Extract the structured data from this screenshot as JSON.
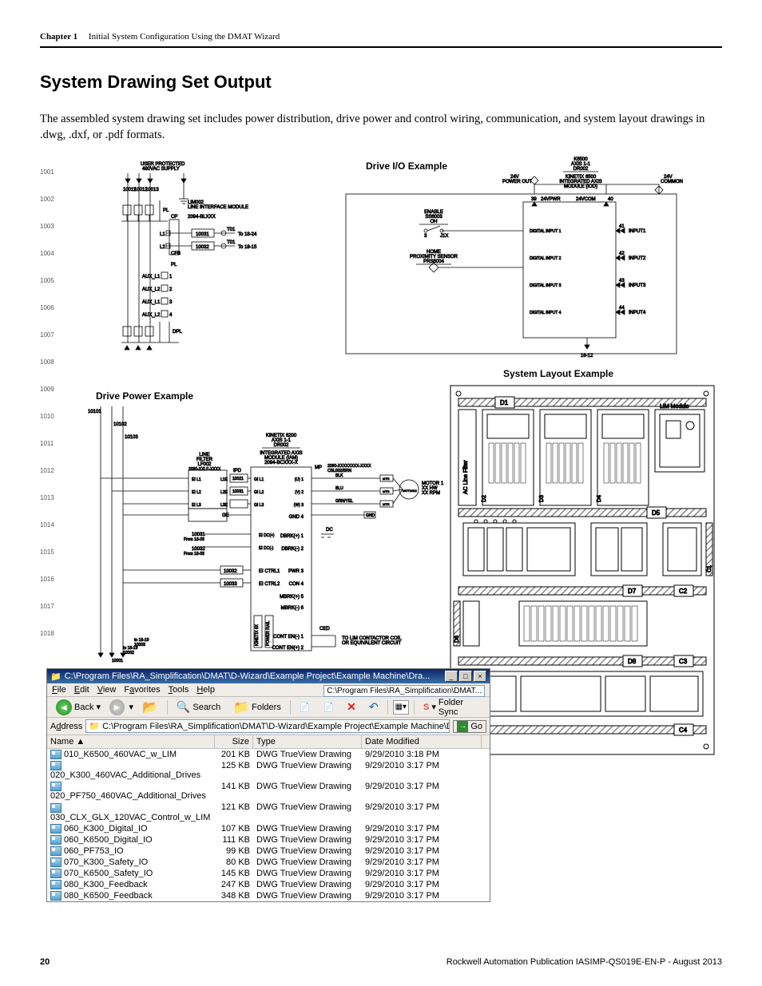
{
  "header": {
    "chapter": "Chapter 1",
    "title": "Initial System Configuration Using the DMAT Wizard"
  },
  "section_title": "System Drawing Set Output",
  "body_text": "The assembled system drawing set includes power distribution, drive power and control wiring, communication, and system layout drawings in .dwg, .dxf, or .pdf formats.",
  "labels": {
    "drive_io": "Drive I/O Example",
    "drive_power": "Drive Power Example",
    "system_layout": "System Layout Example"
  },
  "power_dist": {
    "header_l1": "USER PROTECTED",
    "header_l2": "480VAC SUPPLY",
    "lim_l1": "LIM002",
    "lim_l2": "LINE INTERFACE MODULE",
    "lim_l3": "2094-BLXXX",
    "cp": "CP",
    "to1": "To 18-24",
    "to2": "To 18-15",
    "pl": "PL",
    "dpl": "DPL",
    "bus_top": [
      "10011",
      "10012",
      "10013"
    ],
    "right_bus": [
      "10031",
      "10032"
    ],
    "aux_rows": [
      "AUX_L1",
      "AUX_L2",
      "AUX_L1",
      "AUX_L2"
    ],
    "aux_pins": [
      "1",
      "2",
      "3",
      "4"
    ],
    "L_rows": [
      "L1",
      "L2"
    ],
    "fb": "CFB",
    "fb_sub": [
      "T01",
      "T01"
    ],
    "row_nums": [
      "1001",
      "1002",
      "1003",
      "1004",
      "1005",
      "1006",
      "1007",
      "1008",
      "1009",
      "1010",
      "1011",
      "1012",
      "1013",
      "1014",
      "1015",
      "1016",
      "1017",
      "1018"
    ]
  },
  "drive_io": {
    "title_l1": "K6500",
    "title_l2": "AXIS 1-1",
    "title_l3": "DR002",
    "module_l1": "KINETIX 6500",
    "module_l2": "INTEGRATED AXIS",
    "module_l3": "MODULE (IOD)",
    "top_left_pin": "39",
    "top_left_lbl": "24VPWR",
    "top_mid_lbl": "24VCOM",
    "top_right_pin": "40",
    "pwr24_l1": "24V",
    "pwr24_l2": "POWER OUT",
    "com24_l1": "24V",
    "com24_l2": "COMMON",
    "enable_l1": "ENABLE",
    "enable_l2": "SS6003",
    "enable_l3": "OH",
    "enable_pin": "3",
    "enable_jx": "J1X",
    "home_l1": "HOME",
    "home_l2": "PROXIMITY SENSOR",
    "home_l3": "PRS6004",
    "inputs": [
      {
        "lbl": "DIGITAL INPUT 1",
        "pin": "41",
        "ext": "INPUT1"
      },
      {
        "lbl": "DIGITAL INPUT 2",
        "pin": "42",
        "ext": "INPUT2"
      },
      {
        "lbl": "DIGITAL INPUT 3",
        "pin": "43",
        "ext": "INPUT3"
      },
      {
        "lbl": "DIGITAL INPUT 4",
        "pin": "44",
        "ext": "INPUT4"
      }
    ],
    "foot": "16-12"
  },
  "drive_power": {
    "title_l1": "KINETIX 6200",
    "title_l2": "AXIS 1-1",
    "title_l3": "DR002",
    "module_l1": "INTEGRATED AXIS",
    "module_l2": "MODULE (IAM)",
    "module_l3": "2094-BCXXX-X",
    "line_filter_l1": "LINE",
    "line_filter_l2": "FILTER",
    "line_filter_l3": "LF002",
    "line_filter_pn": "2090-XXLF-XXXX",
    "cable_l1": "2090-XXXXXXXX-XXXX",
    "cable_l2": "CBL002/BRN",
    "left_bus": [
      "10101",
      "10102",
      "10103"
    ],
    "ipd_boxes": [
      "10021",
      "10031"
    ],
    "ipd_lbl": "IPD",
    "phase_pins_L": [
      "EI L1",
      "EI L2",
      "EI L3"
    ],
    "phase_pins_M": [
      "L1E",
      "L2E",
      "L3E"
    ],
    "phase_pins_R": [
      "GI L1",
      "GI L2",
      "GI L3"
    ],
    "uvw": [
      "(U) 1",
      "(V) 2",
      "(W) 3"
    ],
    "wire_colors": [
      "BLK",
      "BLU",
      "GRN/YEL"
    ],
    "mtb": "MTR",
    "gnd": "GND",
    "motor_ref": "MOT1012",
    "motor_l1": "MOTOR 1",
    "motor_l2": "XX HW",
    "motor_l3": "XX RPM",
    "ge": "GE",
    "dc_rows": [
      "EI DC(+)",
      "EI DC(-)"
    ],
    "dbrk": [
      "DBRK(+) 1",
      "DBRK(-) 2"
    ],
    "tag_10031": "10031",
    "tag_10031_sub": "From 18-03",
    "tag_10032": "10032",
    "tag_10032_sub": "From 18-03",
    "ctrl_box": [
      "10032",
      "10033"
    ],
    "ctrl_rows": [
      "EI CTRL1",
      "EI CTRL2"
    ],
    "pwr_con": [
      "PWR 3",
      "CON 4"
    ],
    "mbrk": [
      "MBRK(+) 5",
      "MBRK(-) 6"
    ],
    "cont_en": [
      "CONT EN(-) 1",
      "CONT EN(+) 2"
    ],
    "ced": "CED",
    "contactor_l1": "TO LIM CONTACTOR COIL",
    "contactor_l2": "OR EQUIVALENT CIRCUIT",
    "back_rail_l1": "KINETIX 6X",
    "back_rail_l2": "BACK",
    "back_rail_l3": "SLOT",
    "back_rail_r": "POWER RAIL",
    "foot_refs": [
      {
        "main": "10003",
        "sub": "to 18-19"
      },
      {
        "main": "10002",
        "sub": "to 18-19"
      },
      {
        "main": "10001",
        "sub": ""
      }
    ]
  },
  "layout": {
    "lim": "LIM Module",
    "d_labels": [
      "D1",
      "D2",
      "D3",
      "D4",
      "D5",
      "D6",
      "D7",
      "D8"
    ],
    "filter_lbl": "AC Line Filter",
    "c_labels": [
      "C1",
      "C2",
      "C3",
      "C4"
    ],
    "oo": "O O"
  },
  "explorer": {
    "title": "C:\\Program Files\\RA_Simplification\\DMAT\\D-Wizard\\Example Project\\Example Machine\\Dra...",
    "path_short": "C:\\Program Files\\RA_Simplification\\DMAT...",
    "menu": [
      "File",
      "Edit",
      "View",
      "Favorites",
      "Tools",
      "Help"
    ],
    "back": "Back",
    "search": "Search",
    "folders": "Folders",
    "folder_sync": "Folder Sync",
    "address_lbl": "Address",
    "address_val": "C:\\Program Files\\RA_Simplification\\DMAT\\D-Wizard\\Example Project\\Example Machine\\Drawings\\DWG",
    "go": "Go",
    "columns": [
      "Name",
      "Size",
      "Type",
      "Date Modified"
    ],
    "sort_arrow": "▲",
    "rows": [
      {
        "name": "010_K6500_460VAC_w_LIM",
        "size": "201 KB",
        "type": "DWG TrueView Drawing",
        "date": "9/29/2010 3:18 PM"
      },
      {
        "name": "020_K300_460VAC_Additional_Drives",
        "size": "125 KB",
        "type": "DWG TrueView Drawing",
        "date": "9/29/2010 3:17 PM"
      },
      {
        "name": "020_PF750_460VAC_Additional_Drives",
        "size": "141 KB",
        "type": "DWG TrueView Drawing",
        "date": "9/29/2010 3:17 PM"
      },
      {
        "name": "030_CLX_GLX_120VAC_Control_w_LIM",
        "size": "121 KB",
        "type": "DWG TrueView Drawing",
        "date": "9/29/2010 3:17 PM"
      },
      {
        "name": "060_K300_Digital_IO",
        "size": "107 KB",
        "type": "DWG TrueView Drawing",
        "date": "9/29/2010 3:17 PM"
      },
      {
        "name": "060_K6500_Digital_IO",
        "size": "111 KB",
        "type": "DWG TrueView Drawing",
        "date": "9/29/2010 3:17 PM"
      },
      {
        "name": "060_PF753_IO",
        "size": "99 KB",
        "type": "DWG TrueView Drawing",
        "date": "9/29/2010 3:17 PM"
      },
      {
        "name": "070_K300_Safety_IO",
        "size": "80 KB",
        "type": "DWG TrueView Drawing",
        "date": "9/29/2010 3:17 PM"
      },
      {
        "name": "070_K6500_Safety_IO",
        "size": "145 KB",
        "type": "DWG TrueView Drawing",
        "date": "9/29/2010 3:17 PM"
      },
      {
        "name": "080_K300_Feedback",
        "size": "247 KB",
        "type": "DWG TrueView Drawing",
        "date": "9/29/2010 3:17 PM"
      },
      {
        "name": "080_K6500_Feedback",
        "size": "348 KB",
        "type": "DWG TrueView Drawing",
        "date": "9/29/2010 3:17 PM"
      }
    ]
  },
  "footer": {
    "page": "20",
    "pub": "Rockwell Automation Publication IASIMP-QS019E-EN-P - August 2013"
  },
  "style": {
    "explorer_title_bg_from": "#0a246a",
    "explorer_title_bg_to": "#3a6ea5",
    "explorer_chrome_bg": "#efece7",
    "diagram_stroke": "#000000",
    "hatch": "#888888",
    "box_fill": "#ffffff"
  }
}
